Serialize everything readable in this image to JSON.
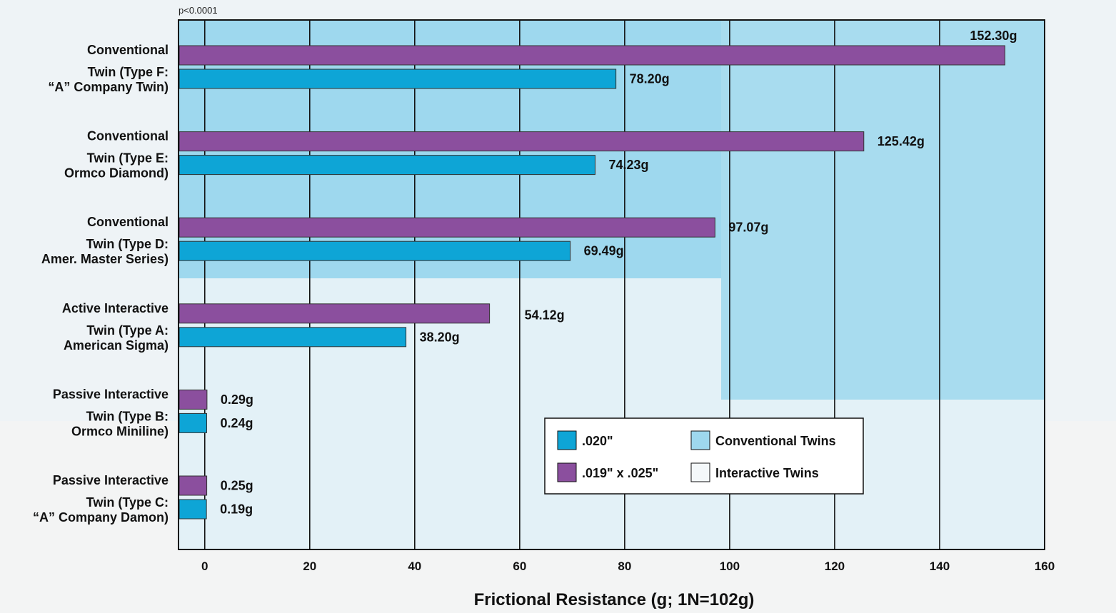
{
  "chart_data": {
    "type": "bar",
    "orientation": "horizontal",
    "annotation": "p<0.0001",
    "xlabel": "Frictional Resistance (g; 1N=102g)",
    "xlim": [
      -5,
      160
    ],
    "xticks": [
      0,
      20,
      40,
      60,
      80,
      100,
      120,
      140,
      160
    ],
    "grid": true,
    "colors": {
      "purple": "#8b4f9e",
      "blue": "#0ea5d6",
      "conventional_bg": "#9ed8ee",
      "interactive_bg": "#f4f8fa"
    },
    "categories": [
      {
        "lines": [
          "Conventional",
          "Twin (Type F:",
          "“A” Company Twin)"
        ],
        "group": "Conventional Twins",
        "values": [
          152.3,
          78.2
        ],
        "labels": [
          "152.30g",
          "78.20g"
        ]
      },
      {
        "lines": [
          "Conventional",
          "Twin (Type E:",
          "Ormco Diamond)"
        ],
        "group": "Conventional Twins",
        "values": [
          125.42,
          74.23
        ],
        "labels": [
          "125.42g",
          "74.23g"
        ]
      },
      {
        "lines": [
          "Conventional",
          "Twin (Type D:",
          "Amer. Master Series)"
        ],
        "group": "Conventional Twins",
        "values": [
          97.07,
          69.49
        ],
        "labels": [
          "97.07g",
          "69.49g"
        ]
      },
      {
        "lines": [
          "Active Interactive",
          "Twin (Type A:",
          "American Sigma)"
        ],
        "group": "Interactive Twins",
        "values": [
          54.12,
          38.2
        ],
        "labels": [
          "54.12g",
          "38.20g"
        ]
      },
      {
        "lines": [
          "Passive Interactive",
          "Twin (Type B:",
          "Ormco Miniline)"
        ],
        "group": "Interactive Twins",
        "values": [
          0.29,
          0.24
        ],
        "labels": [
          "0.29g",
          "0.24g"
        ]
      },
      {
        "lines": [
          "Passive Interactive",
          "Twin (Type C:",
          "“A” Company Damon)"
        ],
        "group": "Interactive Twins",
        "values": [
          0.25,
          0.19
        ],
        "labels": [
          "0.25g",
          "0.19g"
        ]
      }
    ],
    "series": [
      {
        "name": ".019\" x .025\"",
        "color": "#8b4f9e"
      },
      {
        "name": ".020\"",
        "color": "#0ea5d6"
      }
    ],
    "legend": {
      "placement": "bottom-right",
      "items": [
        {
          "text": ".020\"",
          "color": "#0ea5d6"
        },
        {
          "text": "Conventional Twins",
          "color": "#9ed8ee"
        },
        {
          "text": ".019\" x .025\"",
          "color": "#8b4f9e"
        },
        {
          "text": "Interactive Twins",
          "color": "#f4f8fa"
        }
      ]
    }
  }
}
